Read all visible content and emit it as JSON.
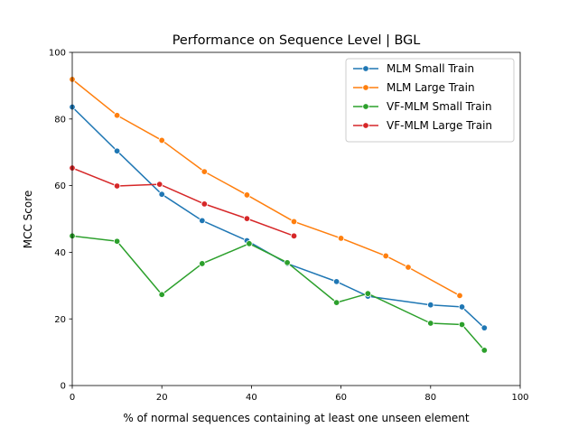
{
  "chart_data": {
    "type": "line",
    "title": "Performance on Sequence Level | BGL",
    "xlabel": "% of normal sequences containing at least one unseen element",
    "ylabel": "MCC Score",
    "xlim": [
      0,
      100
    ],
    "ylim": [
      0,
      100
    ],
    "xticks": [
      "0",
      "20",
      "40",
      "60",
      "80",
      "100"
    ],
    "yticks": [
      "0",
      "20",
      "40",
      "60",
      "80",
      "100"
    ],
    "grid": false,
    "legend_position": "top-right",
    "series": [
      {
        "name": "MLM Small Train",
        "color": "#1f77b4",
        "x": [
          0,
          10,
          20,
          29,
          39,
          48,
          59,
          66,
          80,
          87,
          92
        ],
        "y": [
          83.6,
          70.4,
          57.4,
          49.5,
          43.5,
          36.6,
          31.2,
          26.8,
          24.2,
          23.6,
          17.3
        ]
      },
      {
        "name": "MLM Large Train",
        "color": "#ff7f0e",
        "x": [
          0,
          10,
          20,
          29.5,
          39,
          49.5,
          60,
          70,
          75,
          86.5
        ],
        "y": [
          91.9,
          81.1,
          73.6,
          64.2,
          57.2,
          49.2,
          44.2,
          38.9,
          35.5,
          27.0
        ]
      },
      {
        "name": "VF-MLM Small Train",
        "color": "#2ca02c",
        "x": [
          0,
          10,
          20,
          29,
          39.5,
          48,
          59,
          66,
          80,
          87,
          92
        ],
        "y": [
          44.9,
          43.3,
          27.3,
          36.6,
          42.6,
          36.9,
          24.9,
          27.6,
          18.7,
          18.3,
          10.6
        ]
      },
      {
        "name": "VF-MLM Large Train",
        "color": "#d62728",
        "x": [
          0,
          10,
          19.5,
          29.5,
          39,
          49.5
        ],
        "y": [
          65.3,
          59.9,
          60.4,
          54.5,
          50.1,
          44.9
        ]
      }
    ]
  }
}
